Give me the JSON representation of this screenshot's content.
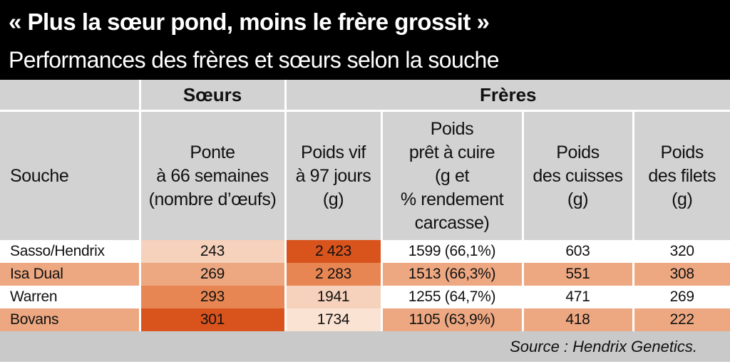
{
  "title": "« Plus la sœur pond, moins le frère grossit »",
  "subtitle": "Performances des frères et sœurs selon la souche",
  "groups": {
    "soeurs": "Sœurs",
    "freres": "Frères"
  },
  "columns": {
    "souche": "Souche",
    "ponte": [
      "Ponte",
      "à 66 semaines",
      "(nombre d’œufs)"
    ],
    "poids_vif": [
      "Poids vif",
      "à 97 jours",
      "(g)"
    ],
    "poids_pac": [
      "Poids",
      "prêt à cuire",
      "(g et",
      "% rendement",
      "carcasse)"
    ],
    "poids_cuisses": [
      "Poids",
      "des cuisses",
      "(g)"
    ],
    "poids_filets": [
      "Poids",
      "des filets",
      "(g)"
    ]
  },
  "rows": [
    {
      "souche": "Sasso/Hendrix",
      "ponte": "243",
      "poids_vif": "2 423",
      "poids_pac": "1599 (66,1%)",
      "cuisses": "603",
      "filets": "320"
    },
    {
      "souche": "Isa Dual",
      "ponte": "269",
      "poids_vif": "2 283",
      "poids_pac": "1513 (66,3%)",
      "cuisses": "551",
      "filets": "308"
    },
    {
      "souche": "Warren",
      "ponte": "293",
      "poids_vif": "1941",
      "poids_pac": "1255 (64,7%)",
      "cuisses": "471",
      "filets": "269"
    },
    {
      "souche": "Bovans",
      "ponte": "301",
      "poids_vif": "1734",
      "poids_pac": "1105 (63,9%)",
      "cuisses": "418",
      "filets": "222"
    }
  ],
  "source": "Source : Hendrix Genetics.",
  "colors": {
    "header_bg": "#000000",
    "table_header_bg": "#d2d2d2",
    "row_alt": "#eda882",
    "heat_low": "#fbe3d4",
    "heat_high": "#d9531d",
    "footer_bg": "#c9c9c9"
  }
}
